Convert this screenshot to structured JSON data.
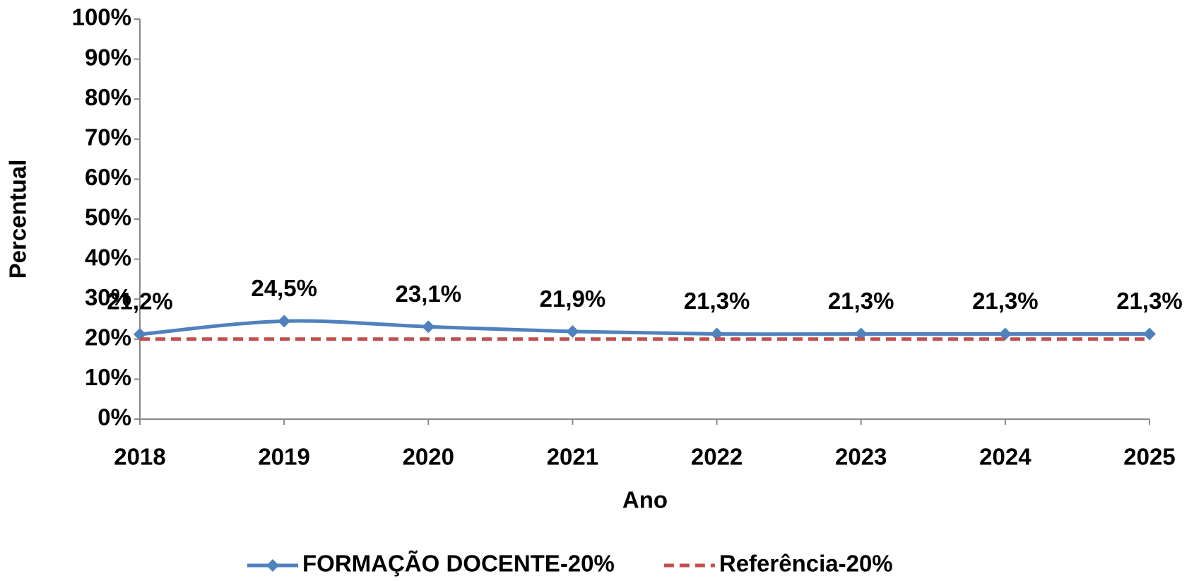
{
  "chart_data": {
    "type": "line",
    "x_label": "Ano",
    "y_label": "Percentual",
    "categories": [
      "2018",
      "2019",
      "2020",
      "2021",
      "2022",
      "2023",
      "2024",
      "2025"
    ],
    "series": [
      {
        "name": "FORMAÇÃO DOCENTE-20%",
        "color": "#4f81bd",
        "smooth": true,
        "marker": "diamond",
        "values": [
          21.2,
          24.5,
          23.1,
          21.9,
          21.3,
          21.3,
          21.3,
          21.3
        ],
        "value_labels": [
          "21,2%",
          "24,5%",
          "23,1%",
          "21,9%",
          "21,3%",
          "21,3%",
          "21,3%",
          "21,3%"
        ]
      },
      {
        "name": "Referência-20%",
        "color": "#c0504d",
        "dashed": true,
        "values": [
          20,
          20,
          20,
          20,
          20,
          20,
          20,
          20
        ]
      }
    ],
    "ylim": [
      0,
      100
    ],
    "yticks": [
      {
        "value": 0,
        "label": "0%"
      },
      {
        "value": 10,
        "label": "10%"
      },
      {
        "value": 20,
        "label": "20%"
      },
      {
        "value": 30,
        "label": "30%"
      },
      {
        "value": 40,
        "label": "40%"
      },
      {
        "value": 50,
        "label": "50%"
      },
      {
        "value": 60,
        "label": "60%"
      },
      {
        "value": 70,
        "label": "70%"
      },
      {
        "value": 80,
        "label": "80%"
      },
      {
        "value": 90,
        "label": "90%"
      },
      {
        "value": 100,
        "label": "100%"
      }
    ],
    "legend": "bottom",
    "grid": false
  }
}
